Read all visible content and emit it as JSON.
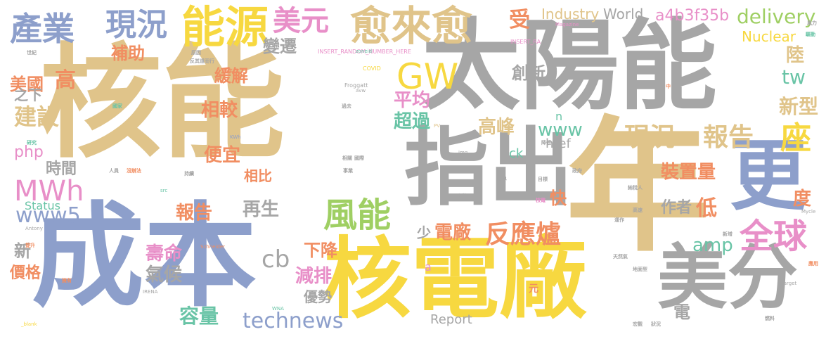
{
  "palette": {
    "tan": "#e0c48a",
    "gray": "#a6a6a6",
    "yellow": "#f7d840",
    "blue": "#8d9fcb",
    "green": "#9fcf63",
    "pink": "#e88fc8",
    "orange": "#f18e62",
    "teal": "#69c4a6"
  },
  "words": [
    {
      "text": "核能",
      "color": "tan"
    },
    {
      "text": "太陽能",
      "color": "gray"
    },
    {
      "text": "年",
      "color": "tan"
    },
    {
      "text": "成本",
      "color": "blue"
    },
    {
      "text": "核電廠",
      "color": "yellow"
    },
    {
      "text": "指出",
      "color": "gray"
    },
    {
      "text": "美分",
      "color": "gray"
    },
    {
      "text": "更",
      "color": "blue"
    },
    {
      "text": "能源",
      "color": "yellow"
    },
    {
      "text": "愈來愈",
      "color": "tan"
    },
    {
      "text": "產業",
      "color": "blue"
    },
    {
      "text": "現況",
      "color": "blue"
    },
    {
      "text": "美元",
      "color": "pink"
    },
    {
      "text": "GW",
      "color": "yellow"
    },
    {
      "text": "風能",
      "color": "green"
    },
    {
      "text": "全球",
      "color": "pink"
    },
    {
      "text": "座",
      "color": "yellow"
    },
    {
      "text": "MWh",
      "color": "pink"
    },
    {
      "text": "現況",
      "color": "tan"
    },
    {
      "text": "報告",
      "color": "tan"
    },
    {
      "text": "technews",
      "color": "blue"
    },
    {
      "text": "delivery",
      "color": "green"
    },
    {
      "text": "a4b3f35b",
      "color": "pink"
    },
    {
      "text": "Industry",
      "color": "tan"
    },
    {
      "text": "World",
      "color": "gray"
    },
    {
      "text": "Nuclear",
      "color": "yellow"
    },
    {
      "text": "www5",
      "color": "blue"
    },
    {
      "text": "反應爐",
      "color": "orange"
    },
    {
      "text": "電廠",
      "color": "orange"
    },
    {
      "text": "建設",
      "color": "tan"
    },
    {
      "text": "美國",
      "color": "orange"
    },
    {
      "text": "高",
      "color": "orange"
    },
    {
      "text": "補助",
      "color": "orange"
    },
    {
      "text": "緩解",
      "color": "orange"
    },
    {
      "text": "變遷",
      "color": "gray"
    },
    {
      "text": "受",
      "color": "orange"
    },
    {
      "text": "創新",
      "color": "gray"
    },
    {
      "text": "平均",
      "color": "pink"
    },
    {
      "text": "超過",
      "color": "teal"
    },
    {
      "text": "高峰",
      "color": "tan"
    },
    {
      "text": "www",
      "color": "teal"
    },
    {
      "text": "tw",
      "color": "teal"
    },
    {
      "text": "陸",
      "color": "tan"
    },
    {
      "text": "新型",
      "color": "tan"
    },
    {
      "text": "相較",
      "color": "orange"
    },
    {
      "text": "便宜",
      "color": "orange"
    },
    {
      "text": "php",
      "color": "pink"
    },
    {
      "text": "時間",
      "color": "gray"
    },
    {
      "text": "之下",
      "color": "gray"
    },
    {
      "text": "相比",
      "color": "orange"
    },
    {
      "text": "再生",
      "color": "gray"
    },
    {
      "text": "報告",
      "color": "orange"
    },
    {
      "text": "Status",
      "color": "teal"
    },
    {
      "text": "作者",
      "color": "gray"
    },
    {
      "text": "低",
      "color": "orange"
    },
    {
      "text": "度",
      "color": "orange"
    },
    {
      "text": "裝置量",
      "color": "orange"
    },
    {
      "text": "快",
      "color": "orange"
    },
    {
      "text": "amp",
      "color": "teal"
    },
    {
      "text": "壽命",
      "color": "pink"
    },
    {
      "text": "氣候",
      "color": "gray"
    },
    {
      "text": "cb",
      "color": "gray"
    },
    {
      "text": "下降",
      "color": "orange"
    },
    {
      "text": "少",
      "color": "gray"
    },
    {
      "text": "減排",
      "color": "pink"
    },
    {
      "text": "優勢",
      "color": "gray"
    },
    {
      "text": "容量",
      "color": "teal"
    },
    {
      "text": "價格",
      "color": "orange"
    },
    {
      "text": "新",
      "color": "gray"
    },
    {
      "text": "電",
      "color": "gray"
    },
    {
      "text": "Report",
      "color": "gray"
    },
    {
      "text": "href",
      "color": "gray"
    },
    {
      "text": "ck",
      "color": "teal"
    },
    {
      "text": "n",
      "color": "teal"
    },
    {
      "text": "a",
      "color": "pink"
    },
    {
      "text": "元",
      "color": "orange"
    },
    {
      "text": "INSERT_RANDOM_NUMBER_HERE",
      "color": "pink"
    },
    {
      "text": "INSERT_RA",
      "color": "pink"
    },
    {
      "text": "COVID",
      "color": "yellow"
    },
    {
      "text": "Froggatt",
      "color": "gray"
    },
    {
      "text": "zoneid",
      "color": "teal"
    },
    {
      "text": "avw",
      "color": "gray"
    },
    {
      "text": "Magazine",
      "color": "pink"
    },
    {
      "text": "KWh",
      "color": "blue"
    },
    {
      "text": "img",
      "color": "gray"
    },
    {
      "text": "src",
      "color": "teal"
    },
    {
      "text": "Antony",
      "color": "gray"
    },
    {
      "text": "Schneider",
      "color": "orange"
    },
    {
      "text": "IRENA",
      "color": "gray"
    },
    {
      "text": "WNA",
      "color": "teal"
    },
    {
      "text": "target",
      "color": "gray"
    },
    {
      "text": "_blank",
      "color": "yellow"
    },
    {
      "text": "Mycle",
      "color": "gray"
    },
    {
      "text": "PV",
      "color": "tan"
    },
    {
      "text": "中",
      "color": "orange"
    },
    {
      "text": "世紀",
      "color": "gray"
    },
    {
      "text": "原因",
      "color": "gray"
    },
    {
      "text": "反其道而行",
      "color": "gray"
    },
    {
      "text": "去年",
      "color": "orange"
    },
    {
      "text": "研究",
      "color": "teal"
    },
    {
      "text": "國家",
      "color": "teal"
    },
    {
      "text": "人員",
      "color": "gray"
    },
    {
      "text": "沒辦法",
      "color": "orange"
    },
    {
      "text": "持續",
      "color": "gray"
    },
    {
      "text": "事業",
      "color": "gray"
    },
    {
      "text": "相關",
      "color": "gray"
    },
    {
      "text": "過去",
      "color": "gray"
    },
    {
      "text": "世界",
      "color": "gray"
    },
    {
      "text": "目標",
      "color": "gray"
    },
    {
      "text": "政府",
      "color": "gray"
    },
    {
      "text": "核電",
      "color": "pink"
    },
    {
      "text": "高速",
      "color": "gray"
    },
    {
      "text": "納稅人",
      "color": "gray"
    },
    {
      "text": "天然氣",
      "color": "gray"
    },
    {
      "text": "新增",
      "color": "gray"
    },
    {
      "text": "地面型",
      "color": "gray"
    },
    {
      "text": "燃料",
      "color": "gray"
    },
    {
      "text": "宏觀",
      "color": "gray"
    },
    {
      "text": "狀況",
      "color": "gray"
    },
    {
      "text": "提升",
      "color": "orange"
    },
    {
      "text": "擁有",
      "color": "orange"
    },
    {
      "text": "應用",
      "color": "orange"
    },
    {
      "text": "風力",
      "color": "gray"
    },
    {
      "text": "驅動",
      "color": "teal"
    },
    {
      "text": "安裝",
      "color": "gray"
    },
    {
      "text": "降低",
      "color": "gray"
    },
    {
      "text": "國際",
      "color": "gray"
    },
    {
      "text": "運作",
      "color": "gray"
    }
  ]
}
